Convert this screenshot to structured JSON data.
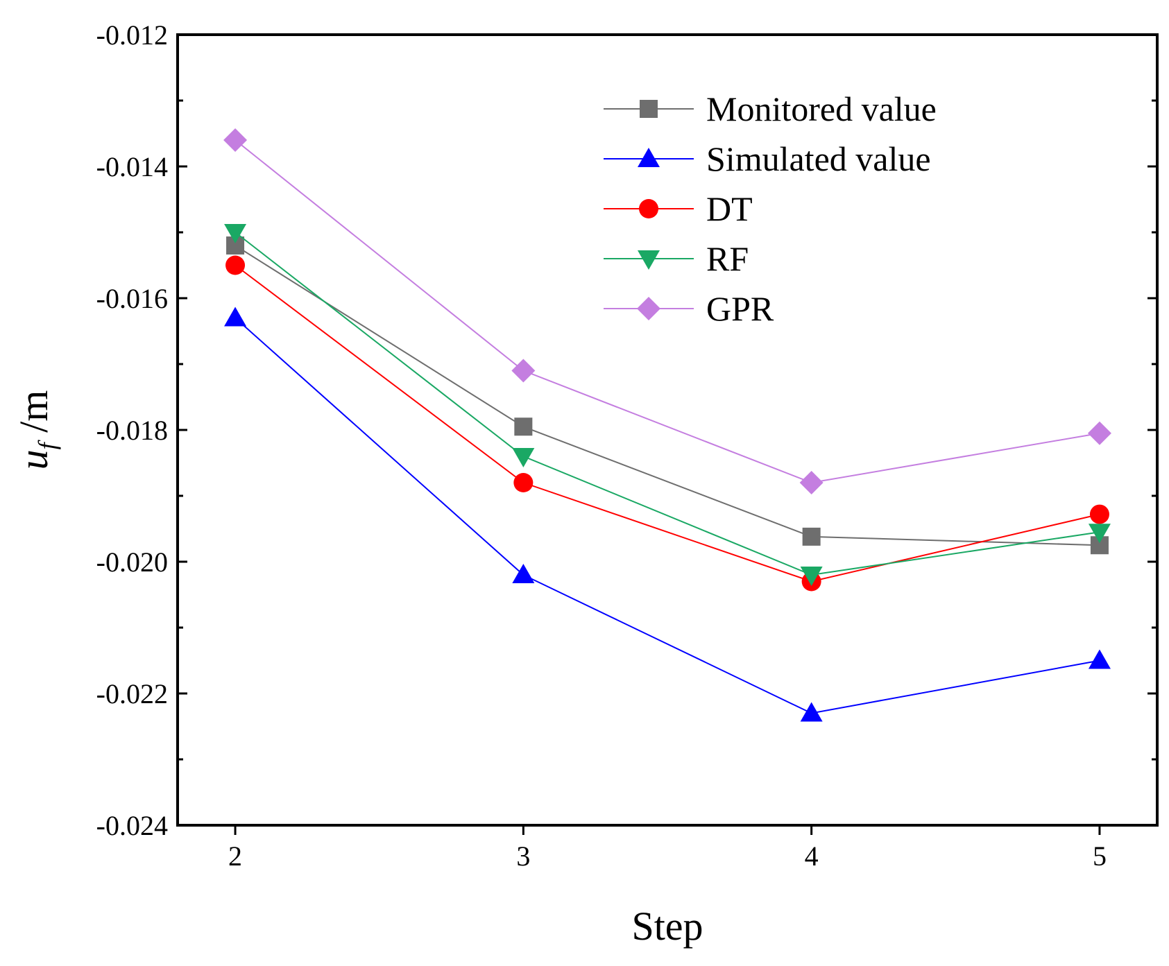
{
  "chart_data": {
    "type": "line",
    "title": "",
    "xlabel": "Step",
    "ylabel": {
      "main": "u",
      "sub": "f",
      "unit": " /m"
    },
    "categories": [
      2,
      3,
      4,
      5
    ],
    "xlim": [
      1.8,
      5.2
    ],
    "ylim": [
      -0.024,
      -0.012
    ],
    "yticks": [
      "-0.024",
      "-0.022",
      "-0.020",
      "-0.018",
      "-0.016",
      "-0.014",
      "-0.012"
    ],
    "xticks": [
      "2",
      "3",
      "4",
      "5"
    ],
    "grid": false,
    "legend_position": "top-right",
    "series": [
      {
        "name": "Monitored value",
        "color": "#6e6e6e",
        "marker": "square",
        "values": [
          -0.0152,
          -0.01795,
          -0.01962,
          -0.01975
        ]
      },
      {
        "name": "Simulated value",
        "color": "#0000ff",
        "marker": "triangle-up",
        "values": [
          -0.0163,
          -0.0202,
          -0.0223,
          -0.0215
        ]
      },
      {
        "name": "DT",
        "color": "#ff0000",
        "marker": "circle",
        "values": [
          -0.0155,
          -0.0188,
          -0.0203,
          -0.01928
        ]
      },
      {
        "name": "RF",
        "color": "#1aa864",
        "marker": "triangle-down",
        "values": [
          -0.015,
          -0.0184,
          -0.0202,
          -0.01955
        ]
      },
      {
        "name": "GPR",
        "color": "#c47ee0",
        "marker": "diamond",
        "values": [
          -0.0136,
          -0.0171,
          -0.0188,
          -0.01805
        ]
      }
    ]
  }
}
